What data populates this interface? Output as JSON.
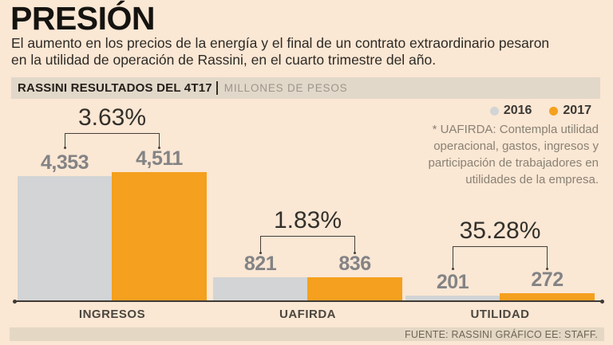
{
  "title": "PRESIÓN",
  "subtitle": "El aumento en los precios de la energía y el final de un contrato extraordinario pesaron\nen la utilidad de operación de Rassini, en el cuarto trimestre del año.",
  "chart_header": {
    "title": "RASSINI RESULTADOS DEL 4T17",
    "unit": "MILLONES DE PESOS"
  },
  "annotation": "* UAFIRDA: Contempla utilidad\noperacional, gastos, ingresos y\nparticipación de trabajadores en\nutilidades de la empresa.",
  "footer": {
    "source": "FUENTE: RASSINI GRÁFICO EE: STAFF."
  },
  "colors": {
    "background": "#FAE7D4",
    "header_strip": "#E2D8C9",
    "footer_strip": "#E4D8C4",
    "series_2016": "#D2D4D5",
    "series_2017": "#F5A01E",
    "axis": "#3E3B36"
  },
  "chart_data": {
    "type": "bar",
    "title": "RASSINI RESULTADOS DEL 4T17",
    "unit_label": "MILLONES DE PESOS",
    "categories": [
      "INGRESOS",
      "UAFIRDA",
      "UTILIDAD"
    ],
    "series": [
      {
        "name": "2016",
        "color": "#D2D4D5",
        "values": [
          4353,
          821,
          201
        ],
        "display": [
          "4,353",
          "821",
          "201"
        ]
      },
      {
        "name": "2017",
        "color": "#F5A01E",
        "values": [
          4511,
          836,
          272
        ],
        "display": [
          "4,511",
          "836",
          "272"
        ]
      }
    ],
    "change_labels": [
      "3.63%",
      "1.83%",
      "35.28%"
    ],
    "ylim": [
      0,
      4511
    ],
    "grid": false,
    "legend_position": "top-right"
  }
}
